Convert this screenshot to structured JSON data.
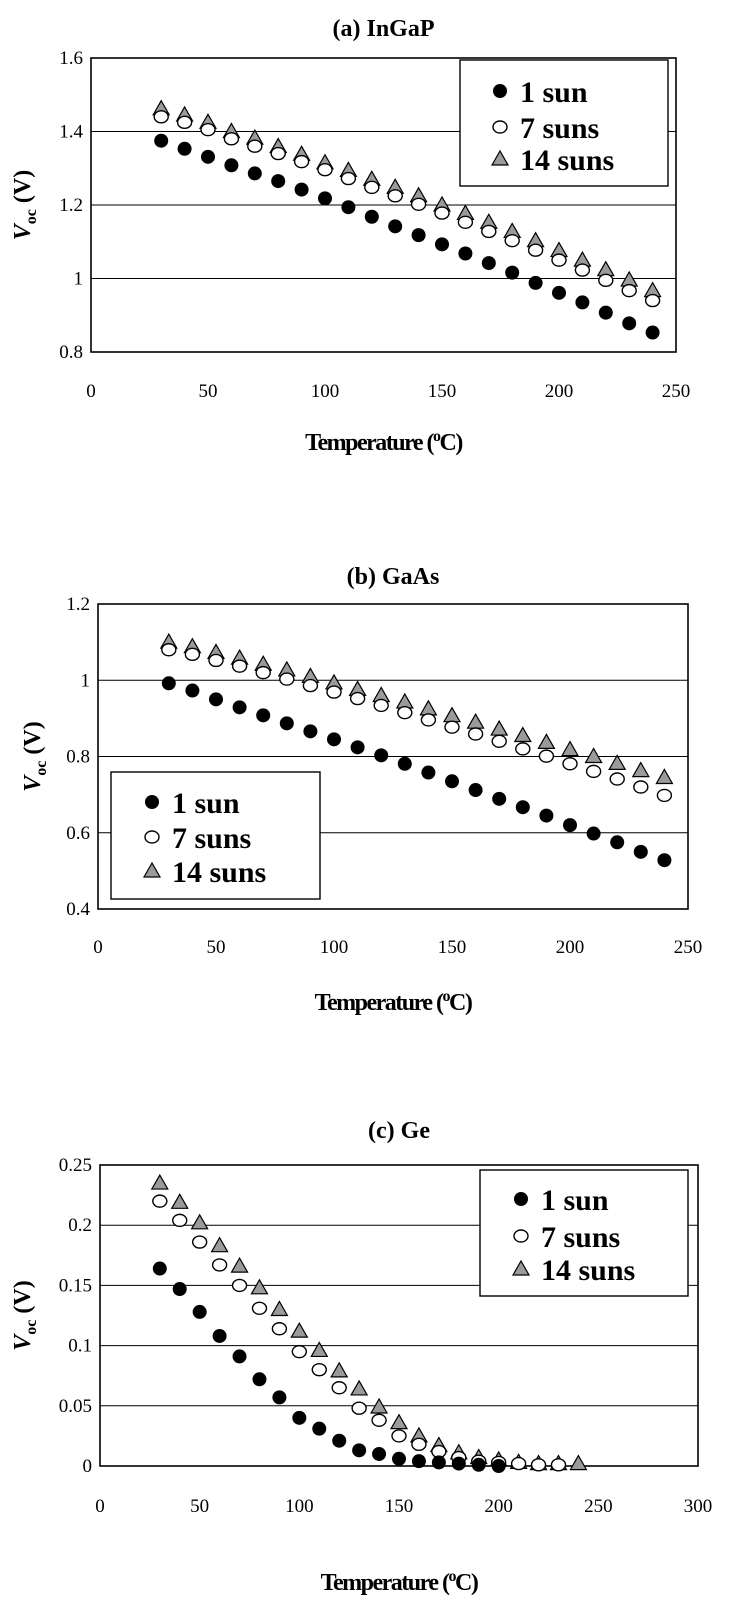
{
  "chart_data": [
    {
      "type": "scatter",
      "title": "(a) InGaP",
      "xlabel": "Temperature (°C)",
      "ylabel": "V_oc (V)",
      "xlim": [
        0,
        250
      ],
      "ylim": [
        0.8,
        1.6
      ],
      "xticks": [
        0,
        50,
        100,
        150,
        200,
        250
      ],
      "yticks": [
        "0.8",
        "1",
        "1.2",
        "1.4",
        "1.6"
      ],
      "grid": "horizontal",
      "legend_position": "top-right",
      "x": [
        30,
        40,
        50,
        60,
        70,
        80,
        90,
        100,
        110,
        120,
        130,
        140,
        150,
        160,
        170,
        180,
        190,
        200,
        210,
        220,
        230,
        240
      ],
      "series": [
        {
          "name": "1 sun",
          "marker": "filled-circle",
          "values": [
            1.375,
            1.353,
            1.331,
            1.308,
            1.286,
            1.265,
            1.242,
            1.218,
            1.194,
            1.168,
            1.142,
            1.118,
            1.093,
            1.068,
            1.042,
            1.016,
            0.988,
            0.961,
            0.935,
            0.907,
            0.878,
            0.853
          ]
        },
        {
          "name": "7 suns",
          "marker": "open-circle",
          "values": [
            1.44,
            1.425,
            1.405,
            1.38,
            1.36,
            1.34,
            1.318,
            1.296,
            1.272,
            1.248,
            1.225,
            1.202,
            1.178,
            1.153,
            1.128,
            1.103,
            1.077,
            1.05,
            1.023,
            0.995,
            0.967,
            0.94
          ]
        },
        {
          "name": "14 suns",
          "marker": "gray-triangle",
          "values": [
            1.462,
            1.445,
            1.425,
            1.4,
            1.382,
            1.359,
            1.338,
            1.315,
            1.294,
            1.27,
            1.248,
            1.225,
            1.2,
            1.177,
            1.153,
            1.128,
            1.103,
            1.076,
            1.05,
            1.024,
            0.996,
            0.967
          ]
        }
      ]
    },
    {
      "type": "scatter",
      "title": "(b) GaAs",
      "xlabel": "Temperature (°C)",
      "ylabel": "V_oc (V)",
      "xlim": [
        0,
        250
      ],
      "ylim": [
        0.4,
        1.2
      ],
      "xticks": [
        0,
        50,
        100,
        150,
        200,
        250
      ],
      "yticks": [
        "0.4",
        "0.6",
        "0.8",
        "1",
        "1.2"
      ],
      "grid": "horizontal",
      "legend_position": "bottom-left",
      "x": [
        30,
        40,
        50,
        60,
        70,
        80,
        90,
        100,
        110,
        120,
        130,
        140,
        150,
        160,
        170,
        180,
        190,
        200,
        210,
        220,
        230,
        240
      ],
      "series": [
        {
          "name": "1 sun",
          "marker": "filled-circle",
          "values": [
            0.992,
            0.973,
            0.95,
            0.929,
            0.908,
            0.887,
            0.866,
            0.845,
            0.824,
            0.803,
            0.781,
            0.758,
            0.735,
            0.712,
            0.689,
            0.667,
            0.645,
            0.62,
            0.598,
            0.575,
            0.55,
            0.528
          ]
        },
        {
          "name": "7 suns",
          "marker": "open-circle",
          "values": [
            1.08,
            1.068,
            1.052,
            1.037,
            1.02,
            1.003,
            0.986,
            0.969,
            0.952,
            0.934,
            0.915,
            0.896,
            0.877,
            0.859,
            0.84,
            0.82,
            0.801,
            0.781,
            0.761,
            0.741,
            0.72,
            0.698
          ]
        },
        {
          "name": "14 suns",
          "marker": "gray-triangle",
          "values": [
            1.1,
            1.088,
            1.073,
            1.058,
            1.042,
            1.027,
            1.01,
            0.993,
            0.976,
            0.96,
            0.943,
            0.925,
            0.907,
            0.89,
            0.872,
            0.855,
            0.837,
            0.818,
            0.8,
            0.782,
            0.763,
            0.745
          ]
        }
      ]
    },
    {
      "type": "scatter",
      "title": "(c) Ge",
      "xlabel": "Temperature (°C)",
      "ylabel": "V_oc (V)",
      "xlim": [
        0,
        300
      ],
      "ylim": [
        0,
        0.25
      ],
      "xticks": [
        0,
        50,
        100,
        150,
        200,
        250,
        300
      ],
      "yticks": [
        "0",
        "0.05",
        "0.1",
        "0.15",
        "0.2",
        "0.25"
      ],
      "grid": "horizontal",
      "legend_position": "top-right",
      "series": [
        {
          "name": "1 sun",
          "marker": "filled-circle",
          "x": [
            30,
            40,
            50,
            60,
            70,
            80,
            90,
            100,
            110,
            120,
            130,
            140,
            150,
            160,
            170,
            180,
            190,
            200
          ],
          "values": [
            0.164,
            0.147,
            0.128,
            0.108,
            0.091,
            0.072,
            0.057,
            0.04,
            0.031,
            0.021,
            0.013,
            0.01,
            0.006,
            0.004,
            0.003,
            0.002,
            0.001,
            0.0
          ]
        },
        {
          "name": "7 suns",
          "marker": "open-circle",
          "x": [
            30,
            40,
            50,
            60,
            70,
            80,
            90,
            100,
            110,
            120,
            130,
            140,
            150,
            160,
            170,
            180,
            190,
            200,
            210,
            220,
            230
          ],
          "values": [
            0.22,
            0.204,
            0.186,
            0.167,
            0.15,
            0.131,
            0.114,
            0.095,
            0.08,
            0.065,
            0.048,
            0.038,
            0.025,
            0.018,
            0.012,
            0.007,
            0.004,
            0.003,
            0.002,
            0.001,
            0.001
          ]
        },
        {
          "name": "14 suns",
          "marker": "gray-triangle",
          "x": [
            30,
            40,
            50,
            60,
            70,
            80,
            90,
            100,
            110,
            120,
            130,
            140,
            150,
            160,
            170,
            180,
            190,
            200,
            210,
            220,
            230,
            240
          ],
          "values": [
            0.235,
            0.219,
            0.202,
            0.183,
            0.166,
            0.148,
            0.13,
            0.112,
            0.096,
            0.079,
            0.064,
            0.049,
            0.036,
            0.025,
            0.017,
            0.011,
            0.007,
            0.005,
            0.003,
            0.002,
            0.002,
            0.002
          ]
        }
      ]
    }
  ]
}
